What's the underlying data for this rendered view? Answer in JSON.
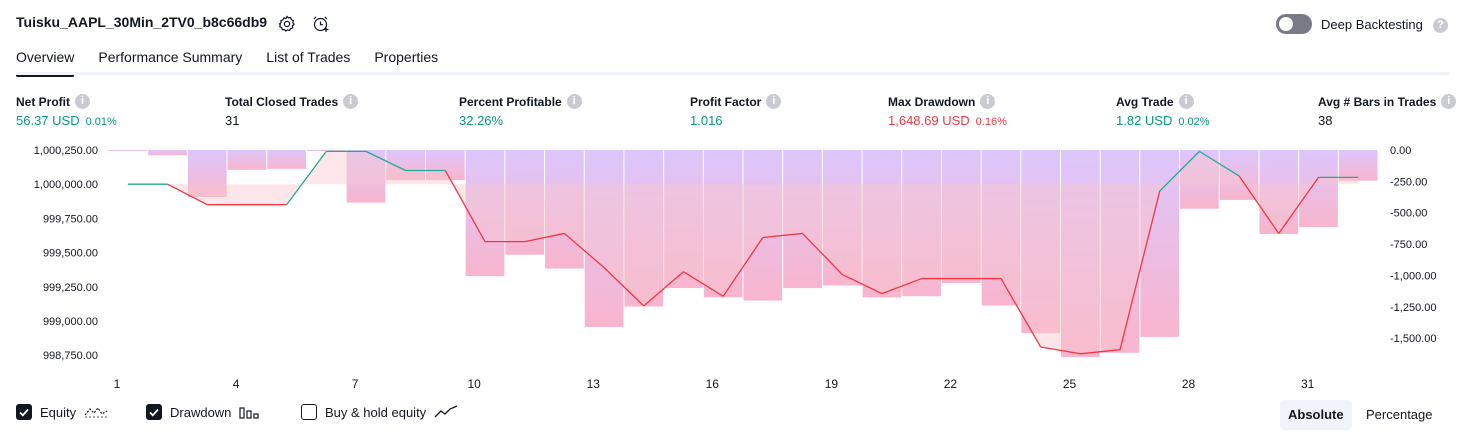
{
  "header": {
    "title": "Tuisku_AAPL_30Min_2TV0_b8c66db9",
    "deep_backtesting_label": "Deep Backtesting",
    "deep_backtesting_on": false
  },
  "tabs": [
    {
      "label": "Overview",
      "active": true
    },
    {
      "label": "Performance Summary",
      "active": false
    },
    {
      "label": "List of Trades",
      "active": false
    },
    {
      "label": "Properties",
      "active": false
    }
  ],
  "metrics": [
    {
      "label": "Net Profit",
      "value": "56.37 USD",
      "pct": "0.01%",
      "color": "green"
    },
    {
      "label": "Total Closed Trades",
      "value": "31",
      "pct": "",
      "color": "dark"
    },
    {
      "label": "Percent Profitable",
      "value": "32.26%",
      "pct": "",
      "color": "green"
    },
    {
      "label": "Profit Factor",
      "value": "1.016",
      "pct": "",
      "color": "green"
    },
    {
      "label": "Max Drawdown",
      "value": "1,648.69 USD",
      "pct": "0.16%",
      "color": "red"
    },
    {
      "label": "Avg Trade",
      "value": "1.82 USD",
      "pct": "0.02%",
      "color": "green"
    },
    {
      "label": "Avg # Bars in Trades",
      "value": "38",
      "pct": "",
      "color": "dark"
    }
  ],
  "chart_data": {
    "type": "line",
    "x": [
      1,
      2,
      3,
      4,
      5,
      6,
      7,
      8,
      9,
      10,
      11,
      12,
      13,
      14,
      15,
      16,
      17,
      18,
      19,
      20,
      21,
      22,
      23,
      24,
      25,
      26,
      27,
      28,
      29,
      30,
      31,
      32
    ],
    "x_ticks": [
      1,
      4,
      7,
      10,
      13,
      16,
      19,
      22,
      25,
      28,
      31
    ],
    "left_axis": {
      "ticks": [
        "1,000,250.00",
        "1,000,000.00",
        "999,750.00",
        "999,500.00",
        "999,250.00",
        "999,000.00",
        "998,750.00"
      ],
      "ylim": [
        998700,
        1000250
      ]
    },
    "right_axis": {
      "ticks": [
        "0.00",
        "-250.00",
        "-500.00",
        "-750.00",
        "-1,000.00",
        "-1,250.00",
        "-1,500.00"
      ],
      "ylim": [
        -1690,
        0
      ]
    },
    "series": [
      {
        "name": "Equity",
        "axis": "left",
        "color": "#f23645",
        "up_color": "#22ab94",
        "values": [
          1000000,
          1000000,
          999850,
          999850,
          999850,
          1000240,
          1000240,
          1000100,
          1000100,
          999580,
          999580,
          999640,
          999390,
          999110,
          999360,
          999180,
          999610,
          999640,
          999340,
          999200,
          999310,
          999310,
          999310,
          998810,
          998760,
          998790,
          999950,
          1000240,
          1000060,
          999640,
          1000050,
          1000050
        ]
      },
      {
        "name": "Drawdown",
        "axis": "right",
        "color": "#c29ffa",
        "values": [
          0,
          -42,
          -375,
          -158,
          -150,
          -5,
          -420,
          -240,
          -240,
          -1006,
          -835,
          -945,
          -1411,
          -1248,
          -1100,
          -1174,
          -1200,
          -1101,
          -1080,
          -1175,
          -1165,
          -1060,
          -1240,
          -1460,
          -1651,
          -1617,
          -1490,
          -468,
          -398,
          -670,
          -615,
          -245
        ]
      }
    ]
  },
  "legend": [
    {
      "label": "Equity",
      "checked": true,
      "icon": "equity-line-icon"
    },
    {
      "label": "Drawdown",
      "checked": true,
      "icon": "drawdown-bars-icon"
    },
    {
      "label": "Buy & hold equity",
      "checked": false,
      "icon": "buy-hold-line-icon"
    }
  ],
  "modes": [
    {
      "label": "Absolute",
      "active": true
    },
    {
      "label": "Percentage",
      "active": false
    }
  ],
  "colors": {
    "accent": "#131722",
    "profit": "#089981",
    "loss": "#f23645",
    "drawdown": "#c29ffa",
    "equity_up": "#22ab94"
  }
}
